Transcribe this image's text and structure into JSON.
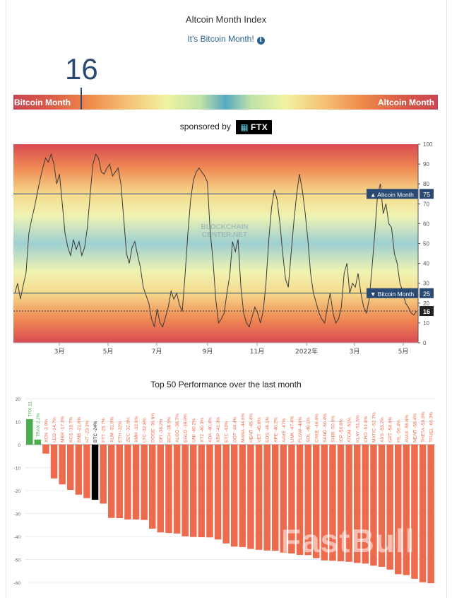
{
  "header": {
    "title": "Altcoin Month Index",
    "subtitle": "It's Bitcoin Month!",
    "info_icon_glyph": "i"
  },
  "gauge": {
    "value": "16",
    "left_label": "Bitcoin Month",
    "right_label": "Altcoin Month"
  },
  "sponsor": {
    "text": "sponsored by",
    "logo_text": "FTX"
  },
  "watermark": "FastBull",
  "chart_data": [
    {
      "type": "line",
      "title": "",
      "xlabel": "",
      "ylabel": "",
      "ylim": [
        0,
        100
      ],
      "yticks": [
        0,
        10,
        20,
        30,
        40,
        50,
        60,
        70,
        80,
        90,
        100
      ],
      "xticks": [
        "3月",
        "5月",
        "7月",
        "9月",
        "11月",
        "2022年",
        "3月",
        "5月"
      ],
      "reference_lines": [
        {
          "label": "▲ Altcoin Month",
          "value": 75,
          "value_label": "75"
        },
        {
          "label": "▼ Bitcoin Month",
          "value": 25,
          "value_label": "25"
        },
        {
          "label": "",
          "value": 16,
          "value_label": "16",
          "style": "dotted"
        }
      ],
      "watermark": [
        "BLOCKCHAIN",
        "CENTER.NET"
      ],
      "series": [
        {
          "values": [
            25,
            30,
            22,
            29,
            35,
            55,
            62,
            68,
            75,
            82,
            88,
            93,
            91,
            95,
            90,
            80,
            85,
            70,
            55,
            48,
            44,
            52,
            47,
            51,
            44,
            48,
            58,
            75,
            90,
            95,
            93,
            86,
            85,
            88,
            90,
            84,
            86,
            88,
            80,
            63,
            45,
            40,
            48,
            51,
            44,
            38,
            28,
            24,
            20,
            12,
            8,
            17,
            10,
            8,
            13,
            18,
            26,
            22,
            25,
            19,
            16,
            34,
            55,
            72,
            82,
            86,
            88,
            86,
            84,
            81,
            56,
            42,
            22,
            10,
            12,
            15,
            25,
            34,
            51,
            46,
            52,
            28,
            15,
            10,
            8,
            13,
            18,
            15,
            10,
            16,
            30,
            52,
            68,
            77,
            72,
            60,
            45,
            32,
            28,
            45,
            61,
            75,
            85,
            77,
            66,
            52,
            35,
            25,
            20,
            15,
            12,
            10,
            18,
            25,
            15,
            10,
            12,
            18,
            35,
            40,
            25,
            30,
            28,
            35,
            25,
            18,
            15,
            22,
            38,
            55,
            75,
            80,
            65,
            70,
            60,
            58,
            45,
            40,
            30,
            26,
            20,
            18,
            15,
            14,
            16
          ]
        }
      ]
    },
    {
      "type": "bar",
      "title": "Top 50 Performance over the last month",
      "xlabel": "",
      "ylabel": "",
      "ylim": [
        -60,
        20
      ],
      "yticks": [
        20,
        10,
        0,
        -10,
        -20,
        -30,
        -40,
        -50,
        -60
      ],
      "categories": [
        "TRX",
        "TRAX",
        "XCN",
        "LEO",
        "MKR",
        "KCS",
        "BNB",
        "HT",
        "BTC",
        "FTT",
        "XLM",
        "ETH",
        "ZEC",
        "XMR",
        "LTC",
        "DOGE",
        "DFI",
        "BCH",
        "ALGO",
        "EGLD",
        "UNI",
        "XTZ",
        "ADA",
        "XRP",
        "ETC",
        "DOT",
        "MANA",
        "HBAR",
        "VET",
        "EOS",
        "APE",
        "AAVE",
        "LINK",
        "FLOW",
        "SOL",
        "CAKE",
        "SAND",
        "SHIB",
        "ICP",
        "ATOM",
        "KLAY",
        "CRO",
        "MATIC",
        "AXS",
        "GRT",
        "FIL",
        "AVAX",
        "NEAR",
        "THETA",
        "TFUEL"
      ],
      "labels": [
        "TRX 11.",
        "TRAX 2.2%",
        "XCN -3.9%",
        "LEO -14.7%",
        "MKR -17.3%",
        "KCS -19.7%",
        "BNB -21.8%",
        "HT -23.3%",
        "BTC -24%",
        "FTT -25.7%",
        "XLM -31.9%",
        "ETH -32%",
        "ZEC -32.6%",
        "XMR -32.6%",
        "LTC -32.8%",
        "DOGE -36.6%",
        "DFI -38.2%",
        "BCH -38.5%",
        "ALGO -38.7%",
        "EGLD -39.9%",
        "UNI -40.2%",
        "XTZ -40.3%",
        "ADA -40.4%",
        "XRP -41.3%",
        "ETC -43%",
        "DOT -44.4%",
        "MANA -44.6%",
        "HBAR -45.4%",
        "VET -45.8%",
        "EOS -46.1%",
        "APE -46.2%",
        "AAVE -47%",
        "LINK -47.4%",
        "FLOW -48%",
        "SOL -48.1%",
        "CAKE -49.4%",
        "SAND -50.4%",
        "SHIB -50.6%",
        "ICP -50.8%",
        "ATOM -51%",
        "KLAY -51.5%",
        "CRO -51.8%",
        "MATIC -52.7%",
        "AXS -53.2%",
        "GRT -54.4%",
        "FIL -56.4%",
        "AVAX -56.8%",
        "NEAR -58.4%",
        "THETA -59.9%",
        "TFUEL -60.3%"
      ],
      "values": [
        11.1,
        2.2,
        -3.9,
        -14.7,
        -17.3,
        -19.7,
        -21.8,
        -23.3,
        -24,
        -25.7,
        -31.9,
        -32,
        -32.6,
        -32.6,
        -32.8,
        -36.6,
        -38.2,
        -38.5,
        -38.7,
        -39.9,
        -40.2,
        -40.3,
        -40.4,
        -41.3,
        -43,
        -44.4,
        -44.6,
        -45.4,
        -45.8,
        -46.1,
        -46.2,
        -47,
        -47.4,
        -48,
        -48.1,
        -49.4,
        -50.4,
        -50.6,
        -50.8,
        -51,
        -51.5,
        -51.8,
        -52.7,
        -53.2,
        -54.4,
        -56.4,
        -56.8,
        -58.4,
        -59.9,
        -60.3
      ],
      "colors": {
        "positive": "#4cae4f",
        "negative": "#ee6a4c",
        "highlight": "#000000"
      },
      "highlight_category": "BTC"
    }
  ]
}
